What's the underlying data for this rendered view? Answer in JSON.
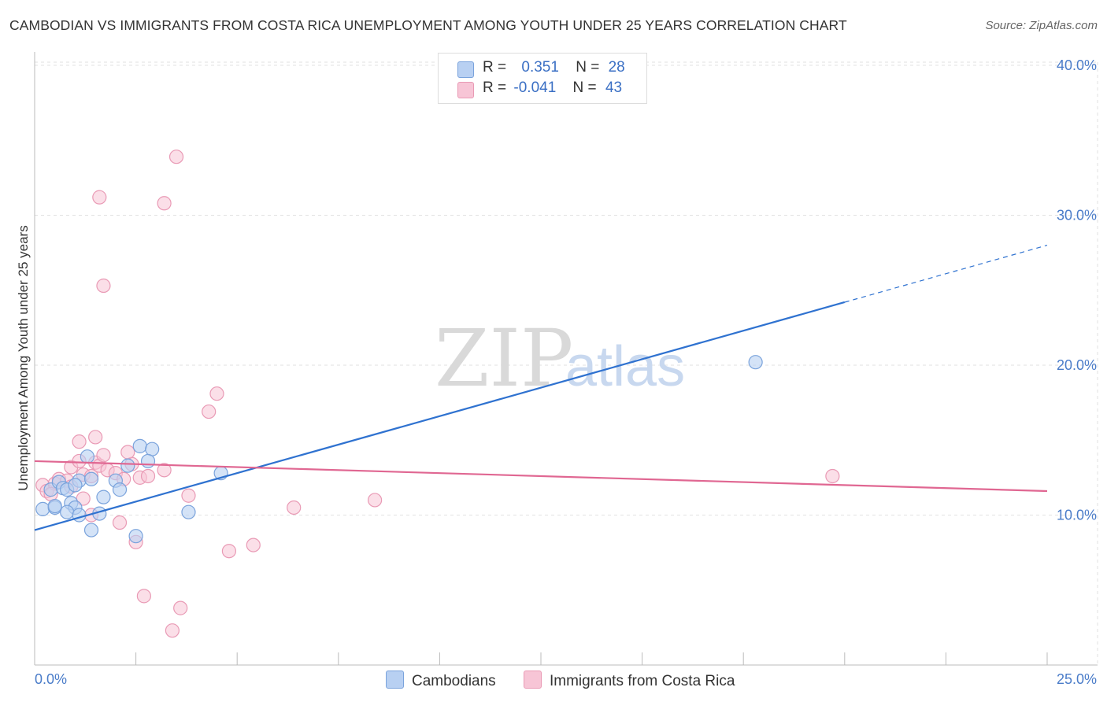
{
  "title": "CAMBODIAN VS IMMIGRANTS FROM COSTA RICA UNEMPLOYMENT AMONG YOUTH UNDER 25 YEARS CORRELATION CHART",
  "source": "Source: ZipAtlas.com",
  "watermark": {
    "zip": "ZIP",
    "atlas": "atlas"
  },
  "legend": {
    "rows": [
      {
        "r_label": "R =",
        "r_value": "0.351",
        "n_label": "N =",
        "n_value": "28"
      },
      {
        "r_label": "R =",
        "r_value": "-0.041",
        "n_label": "N =",
        "n_value": "43"
      }
    ]
  },
  "colors": {
    "blue_fill": "#b8d0f2",
    "blue_stroke": "#7aa3dc",
    "blue_line": "#2f72d0",
    "pink_fill": "#f7c5d6",
    "pink_stroke": "#e99ab5",
    "pink_line": "#e06792"
  },
  "chart_data": {
    "type": "scatter",
    "title": "CAMBODIAN VS IMMIGRANTS FROM COSTA RICA UNEMPLOYMENT AMONG YOUTH UNDER 25 YEARS CORRELATION CHART",
    "xlabel": "",
    "ylabel": "Unemployment Among Youth under 25 years",
    "xlim": [
      0,
      25
    ],
    "ylim": [
      0,
      40
    ],
    "x_tick_labels": [
      "0.0%",
      "25.0%"
    ],
    "y_ticks": [
      10,
      20,
      30,
      40
    ],
    "y_tick_labels": [
      "10.0%",
      "20.0%",
      "30.0%",
      "40.0%"
    ],
    "grid": true,
    "series": [
      {
        "name": "Cambodians",
        "r": 0.351,
        "n": 28,
        "trend": {
          "x0": 0,
          "y0": 9.0,
          "x1": 20,
          "y1": 24.2,
          "dashed_to_x": 25,
          "dashed_to_y": 28.0
        },
        "points": [
          {
            "x": 0.2,
            "y": 10.4
          },
          {
            "x": 0.4,
            "y": 11.7
          },
          {
            "x": 0.5,
            "y": 10.5
          },
          {
            "x": 0.6,
            "y": 12.2
          },
          {
            "x": 0.7,
            "y": 11.8
          },
          {
            "x": 0.5,
            "y": 10.6
          },
          {
            "x": 0.9,
            "y": 10.8
          },
          {
            "x": 1.0,
            "y": 10.5
          },
          {
            "x": 0.8,
            "y": 10.2
          },
          {
            "x": 0.8,
            "y": 11.7
          },
          {
            "x": 1.1,
            "y": 12.3
          },
          {
            "x": 1.3,
            "y": 13.9
          },
          {
            "x": 1.0,
            "y": 12.0
          },
          {
            "x": 1.6,
            "y": 10.1
          },
          {
            "x": 1.7,
            "y": 11.2
          },
          {
            "x": 1.4,
            "y": 12.4
          },
          {
            "x": 1.1,
            "y": 10.0
          },
          {
            "x": 2.0,
            "y": 12.3
          },
          {
            "x": 2.1,
            "y": 11.7
          },
          {
            "x": 2.6,
            "y": 14.6
          },
          {
            "x": 2.3,
            "y": 13.3
          },
          {
            "x": 4.6,
            "y": 12.8
          },
          {
            "x": 3.8,
            "y": 10.2
          },
          {
            "x": 2.9,
            "y": 14.4
          },
          {
            "x": 2.8,
            "y": 13.6
          },
          {
            "x": 1.4,
            "y": 9.0
          },
          {
            "x": 2.5,
            "y": 8.6
          },
          {
            "x": 17.8,
            "y": 20.2
          }
        ]
      },
      {
        "name": "Immigrants from Costa Rica",
        "r": -0.041,
        "n": 43,
        "trend": {
          "x0": 0,
          "y0": 13.6,
          "x1": 25,
          "y1": 11.6
        },
        "points": [
          {
            "x": 0.2,
            "y": 12.0
          },
          {
            "x": 0.3,
            "y": 11.6
          },
          {
            "x": 0.5,
            "y": 12.1
          },
          {
            "x": 0.6,
            "y": 12.4
          },
          {
            "x": 0.8,
            "y": 12.3
          },
          {
            "x": 0.9,
            "y": 13.2
          },
          {
            "x": 1.1,
            "y": 13.6
          },
          {
            "x": 1.2,
            "y": 12.7
          },
          {
            "x": 1.4,
            "y": 12.6
          },
          {
            "x": 1.5,
            "y": 13.5
          },
          {
            "x": 1.6,
            "y": 13.3
          },
          {
            "x": 1.8,
            "y": 13.0
          },
          {
            "x": 2.0,
            "y": 12.8
          },
          {
            "x": 2.2,
            "y": 12.4
          },
          {
            "x": 2.4,
            "y": 13.4
          },
          {
            "x": 2.6,
            "y": 12.5
          },
          {
            "x": 2.8,
            "y": 12.6
          },
          {
            "x": 3.2,
            "y": 13.0
          },
          {
            "x": 1.7,
            "y": 14.0
          },
          {
            "x": 2.3,
            "y": 14.2
          },
          {
            "x": 1.1,
            "y": 14.9
          },
          {
            "x": 1.5,
            "y": 15.2
          },
          {
            "x": 4.3,
            "y": 16.9
          },
          {
            "x": 4.5,
            "y": 18.1
          },
          {
            "x": 3.8,
            "y": 11.3
          },
          {
            "x": 1.2,
            "y": 11.1
          },
          {
            "x": 1.4,
            "y": 10.0
          },
          {
            "x": 2.1,
            "y": 9.5
          },
          {
            "x": 2.5,
            "y": 8.2
          },
          {
            "x": 4.8,
            "y": 7.6
          },
          {
            "x": 5.4,
            "y": 8.0
          },
          {
            "x": 6.4,
            "y": 10.5
          },
          {
            "x": 2.7,
            "y": 4.6
          },
          {
            "x": 3.6,
            "y": 3.8
          },
          {
            "x": 3.4,
            "y": 2.3
          },
          {
            "x": 1.7,
            "y": 25.3
          },
          {
            "x": 3.2,
            "y": 30.8
          },
          {
            "x": 1.6,
            "y": 31.2
          },
          {
            "x": 3.5,
            "y": 33.9
          },
          {
            "x": 8.4,
            "y": 11.0
          },
          {
            "x": 19.7,
            "y": 12.6
          },
          {
            "x": 0.4,
            "y": 11.4
          },
          {
            "x": 0.9,
            "y": 11.9
          }
        ]
      }
    ]
  }
}
